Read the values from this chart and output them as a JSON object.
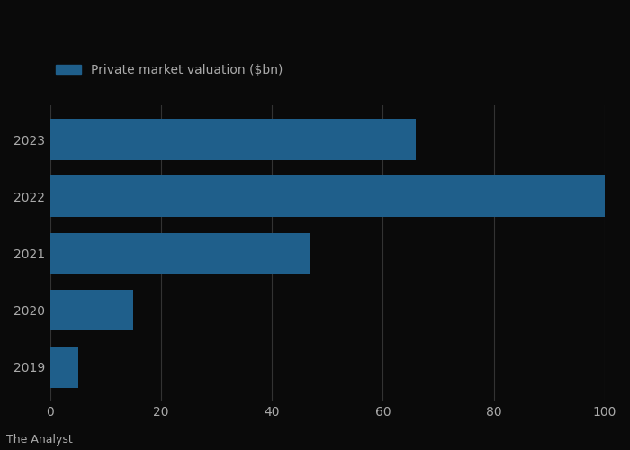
{
  "years": [
    "2023",
    "2022",
    "2021",
    "2020",
    "2019"
  ],
  "values": [
    66,
    100,
    47,
    15,
    5
  ],
  "bar_color": "#1f5f8b",
  "background_color": "#0a0a0a",
  "text_color": "#aaaaaa",
  "legend_label": "Private market valuation ($bn)",
  "xlim": [
    0,
    100
  ],
  "xticks": [
    0,
    20,
    40,
    60,
    80,
    100
  ],
  "source_text": "The Analyst",
  "bar_height": 0.72,
  "tick_fontsize": 10,
  "legend_fontsize": 10,
  "source_fontsize": 9,
  "grid_color": "#333333"
}
